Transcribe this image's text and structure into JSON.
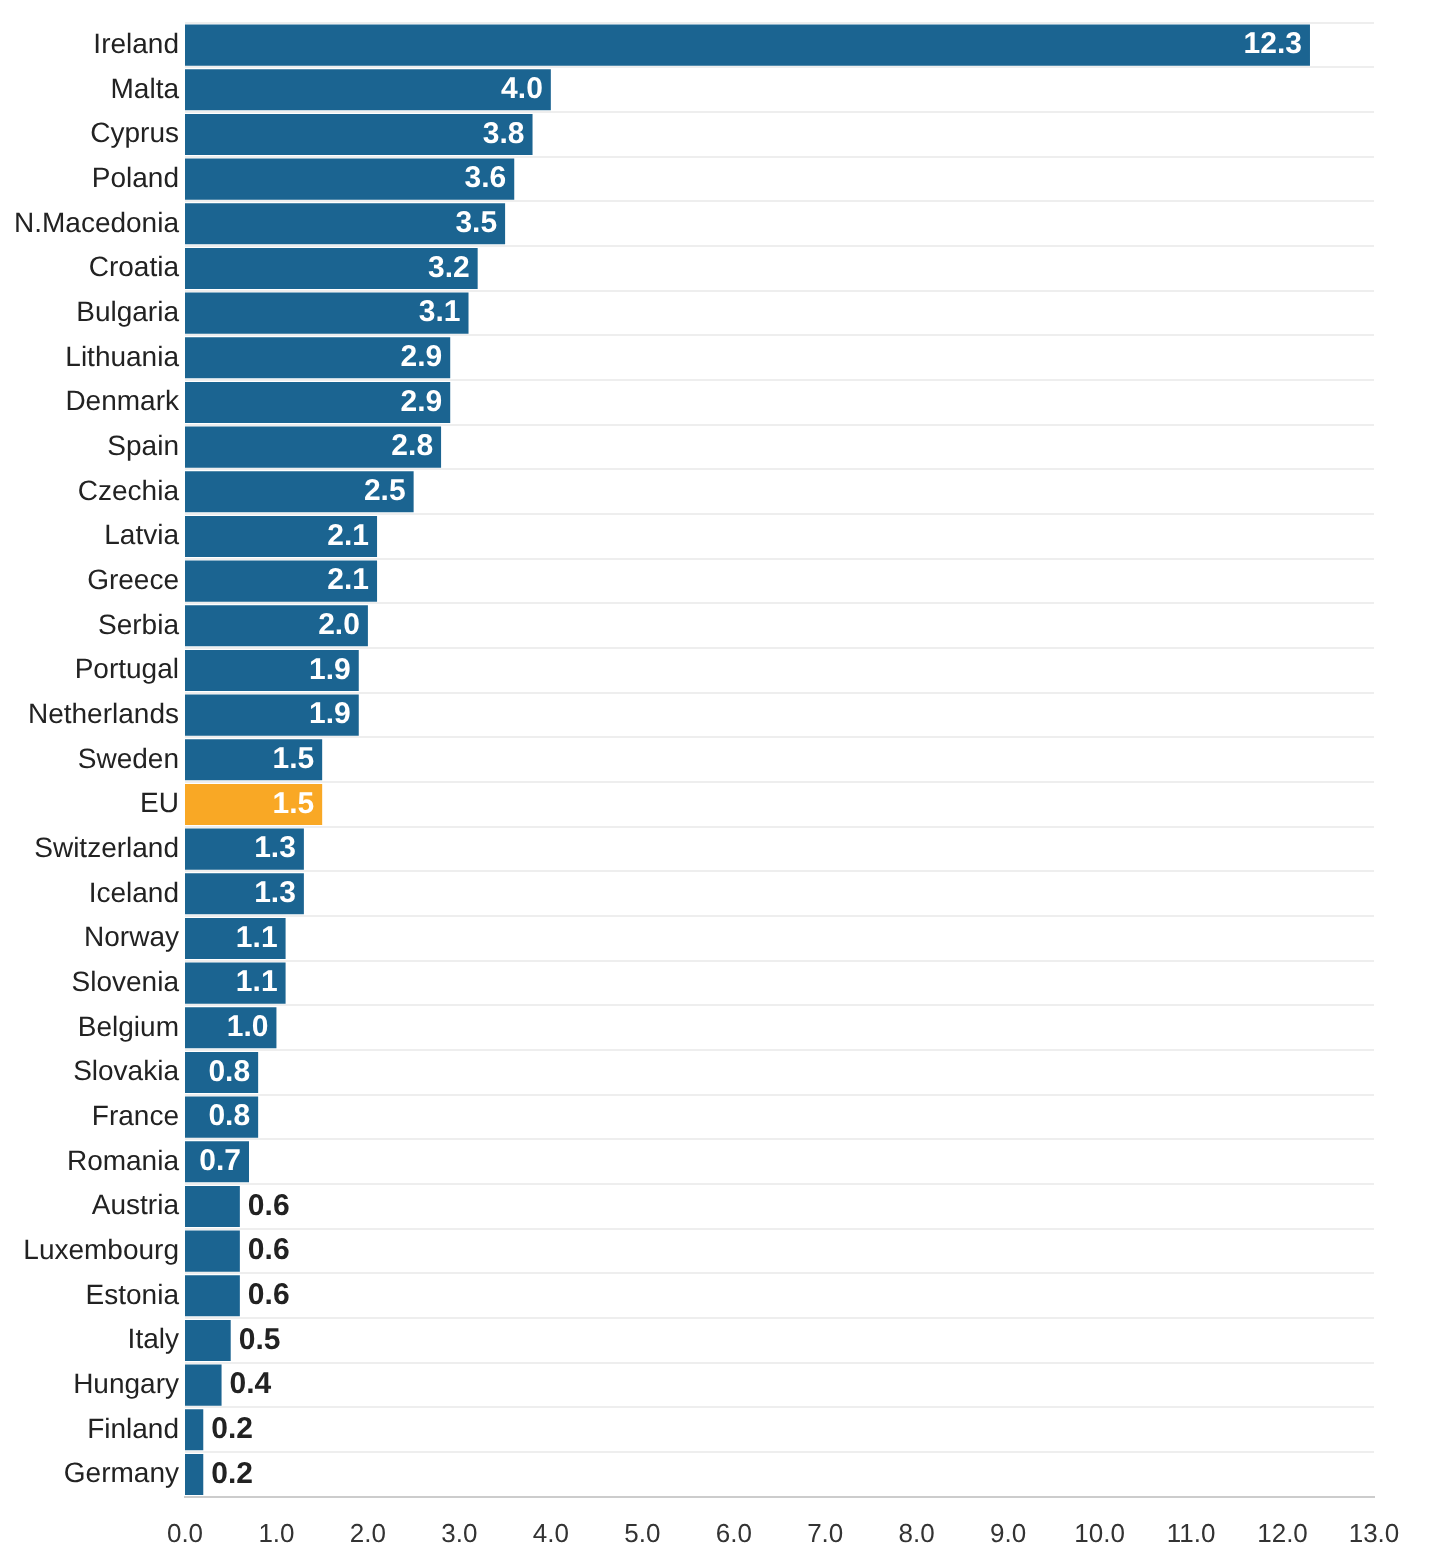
{
  "chart_data": {
    "type": "bar",
    "orientation": "horizontal",
    "categories": [
      "Ireland",
      "Malta",
      "Cyprus",
      "Poland",
      "N.Macedonia",
      "Croatia",
      "Bulgaria",
      "Lithuania",
      "Denmark",
      "Spain",
      "Czechia",
      "Latvia",
      "Greece",
      "Serbia",
      "Portugal",
      "Netherlands",
      "Sweden",
      "EU",
      "Switzerland",
      "Iceland",
      "Norway",
      "Slovenia",
      "Belgium",
      "Slovakia",
      "France",
      "Romania",
      "Austria",
      "Luxembourg",
      "Estonia",
      "Italy",
      "Hungary",
      "Finland",
      "Germany"
    ],
    "values": [
      12.3,
      4.0,
      3.8,
      3.6,
      3.5,
      3.2,
      3.1,
      2.9,
      2.9,
      2.8,
      2.5,
      2.1,
      2.1,
      2.0,
      1.9,
      1.9,
      1.5,
      1.5,
      1.3,
      1.3,
      1.1,
      1.1,
      1.0,
      0.8,
      0.8,
      0.7,
      0.6,
      0.6,
      0.6,
      0.5,
      0.4,
      0.2,
      0.2
    ],
    "value_labels": [
      "12.3",
      "4.0",
      "3.8",
      "3.6",
      "3.5",
      "3.2",
      "3.1",
      "2.9",
      "2.9",
      "2.8",
      "2.5",
      "2.1",
      "2.1",
      "2.0",
      "1.9",
      "1.9",
      "1.5",
      "1.5",
      "1.3",
      "1.3",
      "1.1",
      "1.1",
      "1.0",
      "0.8",
      "0.8",
      "0.7",
      "0.6",
      "0.6",
      "0.6",
      "0.5",
      "0.4",
      "0.2",
      "0.2"
    ],
    "colors": [
      "#1b6491",
      "#1b6491",
      "#1b6491",
      "#1b6491",
      "#1b6491",
      "#1b6491",
      "#1b6491",
      "#1b6491",
      "#1b6491",
      "#1b6491",
      "#1b6491",
      "#1b6491",
      "#1b6491",
      "#1b6491",
      "#1b6491",
      "#1b6491",
      "#1b6491",
      "#f9a825",
      "#1b6491",
      "#1b6491",
      "#1b6491",
      "#1b6491",
      "#1b6491",
      "#1b6491",
      "#1b6491",
      "#1b6491",
      "#1b6491",
      "#1b6491",
      "#1b6491",
      "#1b6491",
      "#1b6491",
      "#1b6491",
      "#1b6491"
    ],
    "xlim": [
      0,
      13
    ],
    "xticks": [
      {
        "value": 0,
        "label": "0.0"
      },
      {
        "value": 1,
        "label": "1.0"
      },
      {
        "value": 2,
        "label": "2.0"
      },
      {
        "value": 3,
        "label": "3.0"
      },
      {
        "value": 4,
        "label": "4.0"
      },
      {
        "value": 5,
        "label": "5.0"
      },
      {
        "value": 6,
        "label": "6.0"
      },
      {
        "value": 7,
        "label": "7.0"
      },
      {
        "value": 8,
        "label": "8.0"
      },
      {
        "value": 9,
        "label": "9.0"
      },
      {
        "value": 10,
        "label": "10.0"
      },
      {
        "value": 11,
        "label": "11.0"
      },
      {
        "value": 12,
        "label": "12.0"
      },
      {
        "value": 13,
        "label": "13.0"
      }
    ],
    "grid": "y",
    "legend": false
  }
}
